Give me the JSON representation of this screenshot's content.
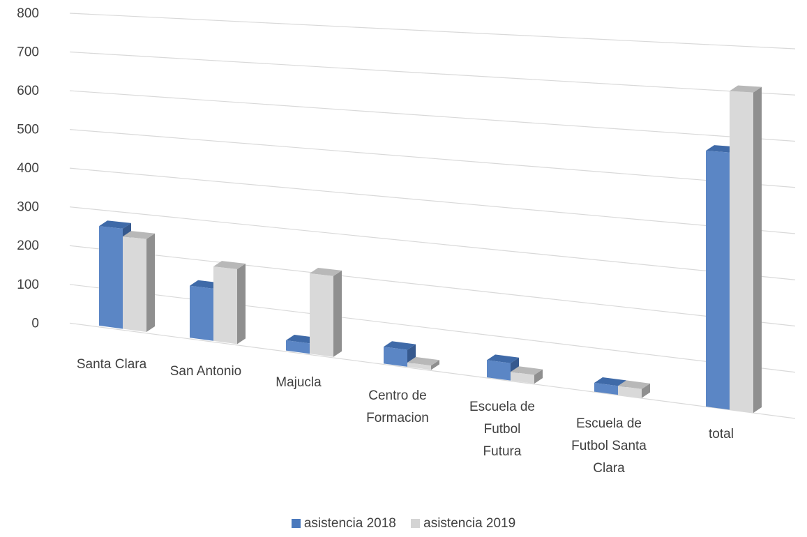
{
  "chart_data": {
    "type": "bar",
    "categories": [
      [
        "Santa Clara"
      ],
      [
        "San Antonio"
      ],
      [
        "Majucla"
      ],
      [
        "Centro de",
        "Formacion"
      ],
      [
        "Escuela de",
        "Futbol",
        "Futura"
      ],
      [
        "Escuela de",
        "Futbol Santa",
        "Clara"
      ],
      [
        "total"
      ]
    ],
    "series": [
      {
        "name": "asistencia 2018",
        "values": [
          255,
          130,
          25,
          40,
          40,
          20,
          565
        ],
        "color": "#5b86c5"
      },
      {
        "name": "asistencia 2019",
        "values": [
          235,
          185,
          195,
          10,
          20,
          20,
          700
        ],
        "color": "#d9d9d9"
      }
    ],
    "ylim": [
      0,
      800
    ],
    "yticks": [
      "0",
      "100",
      "200",
      "300",
      "400",
      "500",
      "600",
      "700",
      "800"
    ],
    "grid": true,
    "legend": "bottom",
    "style": "3d-perspective"
  }
}
